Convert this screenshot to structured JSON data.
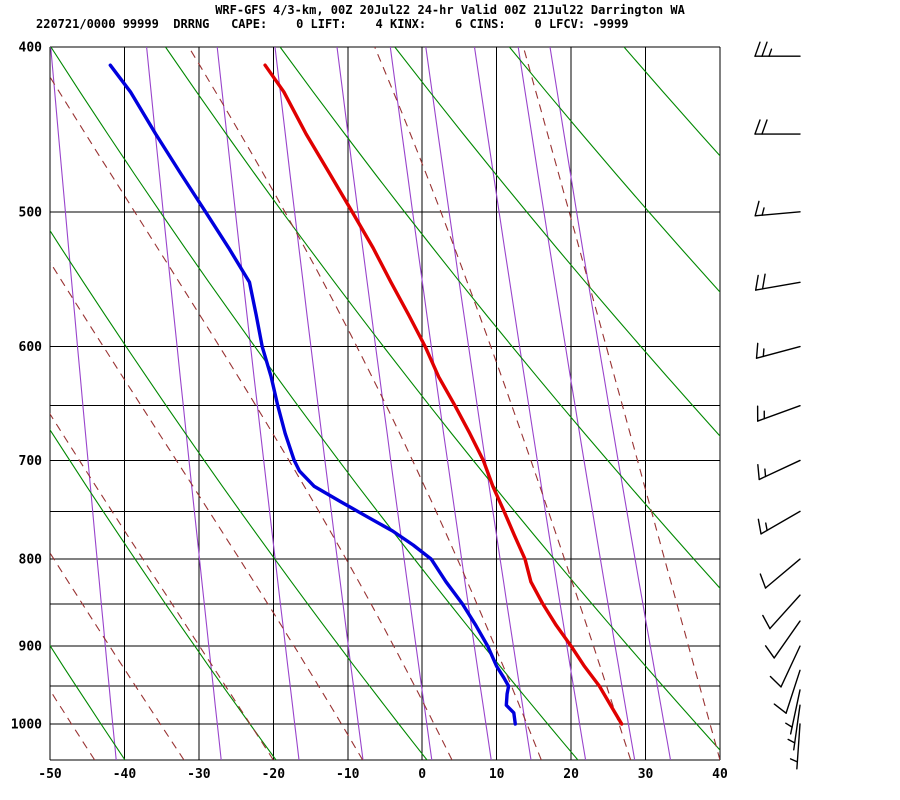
{
  "header": {
    "title": "WRF-GFS 4/3-km, 00Z 20Jul22 24-hr Valid 00Z 21Jul22 Darrington WA",
    "info": "220721/0000 99999  DRRNG   CAPE:    0 LIFT:    4 KINX:    6 CINS:    0 LFCV: -9999",
    "params": {
      "datetime": "220721/0000",
      "station_number": "99999",
      "station_id": "DRRNG",
      "cape": 0,
      "lift": 4,
      "kinx": 6,
      "cins": 0,
      "lfcv": -9999
    }
  },
  "chart_data": {
    "type": "sounding_t_logp",
    "title": "WRF-GFS 4/3-km, 00Z 20Jul22 24-hr Valid 00Z 21Jul22 Darrington WA",
    "x_axis": {
      "range": [
        -50,
        40
      ],
      "ticks": [
        -50,
        -40,
        -30,
        -20,
        -10,
        0,
        10,
        20,
        30,
        40
      ],
      "unit": "C"
    },
    "y_axis": {
      "range": [
        400,
        1050
      ],
      "scale": "log",
      "ticks": [
        400,
        500,
        600,
        700,
        800,
        900,
        1000
      ],
      "unit": "hPa"
    },
    "grid_pressures": [
      400,
      500,
      600,
      650,
      700,
      750,
      800,
      850,
      900,
      950,
      1000,
      1050
    ],
    "isotherm_step_c": 10,
    "dry_adiabats_theta_k": [
      230,
      250,
      270,
      290,
      310,
      330,
      350,
      370,
      390
    ],
    "moist_adiabats_start_c": [
      -44,
      -32,
      -20,
      -8,
      4,
      16,
      28,
      40
    ],
    "mixing_ratio_g_kg": [
      0.1,
      0.4,
      1,
      2,
      4,
      7,
      10,
      16,
      24,
      32
    ],
    "temperature_profile_c": [
      [
        1000,
        26.8
      ],
      [
        975,
        25.3
      ],
      [
        950,
        23.8
      ],
      [
        925,
        21.8
      ],
      [
        900,
        20.0
      ],
      [
        875,
        18.0
      ],
      [
        850,
        16.2
      ],
      [
        825,
        14.6
      ],
      [
        800,
        13.8
      ],
      [
        775,
        12.4
      ],
      [
        750,
        11.0
      ],
      [
        725,
        9.5
      ],
      [
        700,
        8.2
      ],
      [
        675,
        6.4
      ],
      [
        650,
        4.4
      ],
      [
        625,
        2.2
      ],
      [
        600,
        0.4
      ],
      [
        575,
        -1.8
      ],
      [
        550,
        -4.2
      ],
      [
        525,
        -6.6
      ],
      [
        500,
        -9.4
      ],
      [
        475,
        -12.4
      ],
      [
        450,
        -15.6
      ],
      [
        425,
        -18.6
      ],
      [
        410,
        -21.1
      ]
    ],
    "dewpoint_profile_c": [
      [
        1000,
        12.5
      ],
      [
        985,
        12.3
      ],
      [
        975,
        11.3
      ],
      [
        960,
        11.4
      ],
      [
        950,
        11.6
      ],
      [
        940,
        11.0
      ],
      [
        925,
        10.0
      ],
      [
        900,
        8.8
      ],
      [
        875,
        7.2
      ],
      [
        850,
        5.4
      ],
      [
        825,
        3.2
      ],
      [
        800,
        1.2
      ],
      [
        785,
        -1.2
      ],
      [
        770,
        -4.0
      ],
      [
        755,
        -7.5
      ],
      [
        740,
        -11.0
      ],
      [
        725,
        -14.5
      ],
      [
        710,
        -16.5
      ],
      [
        700,
        -17.2
      ],
      [
        675,
        -18.4
      ],
      [
        650,
        -19.4
      ],
      [
        625,
        -20.3
      ],
      [
        600,
        -21.5
      ],
      [
        575,
        -22.3
      ],
      [
        550,
        -23.2
      ],
      [
        525,
        -26.0
      ],
      [
        500,
        -29.1
      ],
      [
        475,
        -32.4
      ],
      [
        450,
        -35.8
      ],
      [
        425,
        -39.2
      ],
      [
        410,
        -41.9
      ]
    ],
    "wind_barbs": [
      {
        "p": 405,
        "dir": 270,
        "kt": 25
      },
      {
        "p": 450,
        "dir": 270,
        "kt": 20
      },
      {
        "p": 500,
        "dir": 265,
        "kt": 15
      },
      {
        "p": 550,
        "dir": 260,
        "kt": 20
      },
      {
        "p": 600,
        "dir": 255,
        "kt": 15
      },
      {
        "p": 650,
        "dir": 250,
        "kt": 15
      },
      {
        "p": 700,
        "dir": 245,
        "kt": 15
      },
      {
        "p": 750,
        "dir": 240,
        "kt": 15
      },
      {
        "p": 800,
        "dir": 230,
        "kt": 10
      },
      {
        "p": 840,
        "dir": 222,
        "kt": 10
      },
      {
        "p": 870,
        "dir": 215,
        "kt": 10
      },
      {
        "p": 900,
        "dir": 205,
        "kt": 10
      },
      {
        "p": 930,
        "dir": 198,
        "kt": 10
      },
      {
        "p": 955,
        "dir": 192,
        "kt": 5
      },
      {
        "p": 975,
        "dir": 188,
        "kt": 5
      },
      {
        "p": 1000,
        "dir": 184,
        "kt": 5
      }
    ],
    "colors": {
      "temperature": "#e00000",
      "dewpoint": "#0000dd",
      "dry_adiabat": "#008800",
      "moist_adiabat": "#993333",
      "mixing_ratio": "#9944cc",
      "grid": "#000000",
      "barb": "#000000",
      "background": "#ffffff"
    }
  }
}
